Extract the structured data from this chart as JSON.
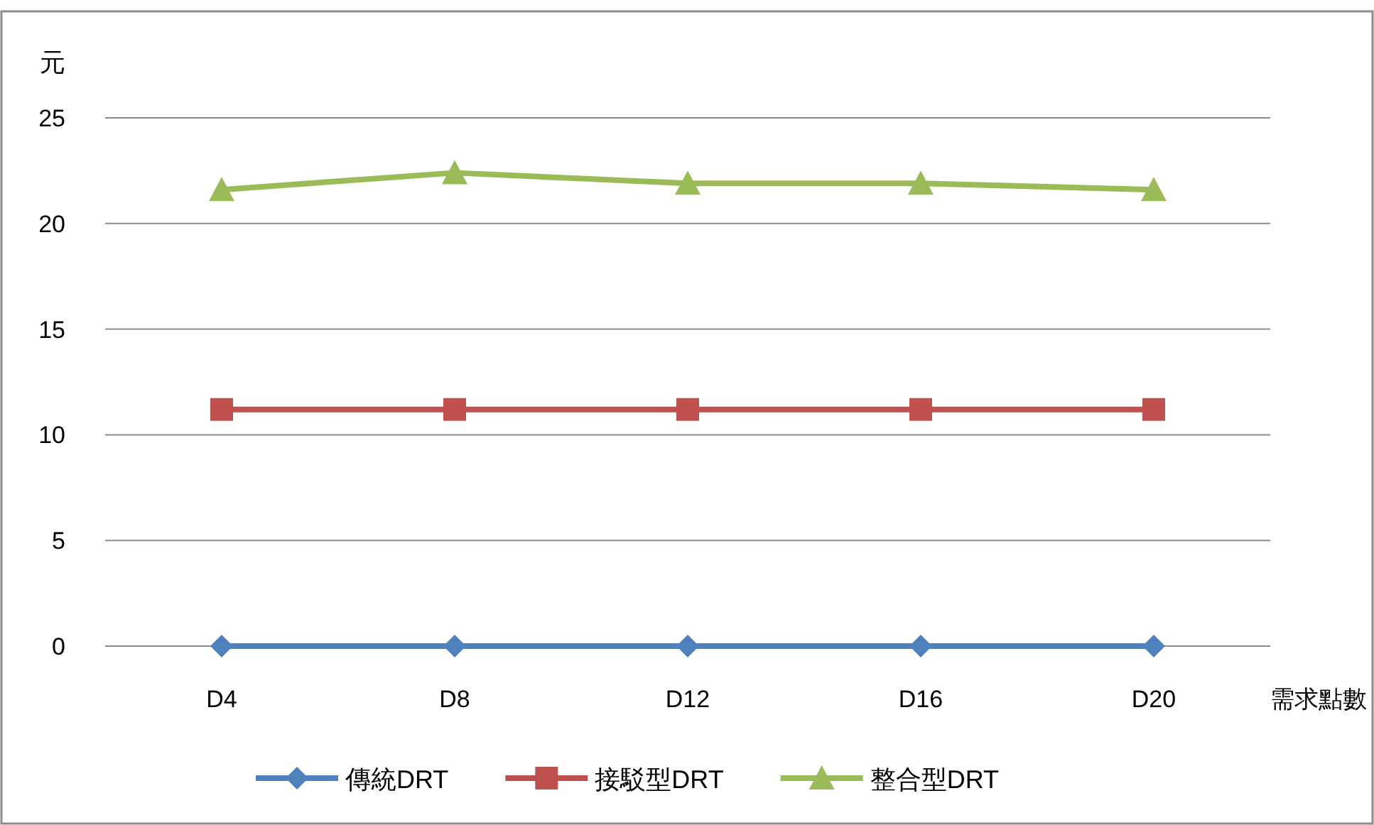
{
  "chart_data": {
    "type": "line",
    "ylabel": "元",
    "xlabel": "需求點數",
    "categories": [
      "D4",
      "D8",
      "D12",
      "D16",
      "D20"
    ],
    "series": [
      {
        "name": "傳統DRT",
        "color": "#4f81bd",
        "marker": "diamond",
        "values": [
          0,
          0,
          0,
          0,
          0
        ]
      },
      {
        "name": "接駁型DRT",
        "color": "#c0504d",
        "marker": "square",
        "values": [
          11.2,
          11.2,
          11.2,
          11.2,
          11.2
        ]
      },
      {
        "name": "整合型DRT",
        "color": "#9bbb59",
        "marker": "triangle",
        "values": [
          21.6,
          22.4,
          21.9,
          21.9,
          21.6
        ]
      }
    ],
    "ylim": [
      0,
      25
    ],
    "yticks": [
      0,
      5,
      10,
      15,
      20,
      25
    ],
    "grid": "y",
    "legend": "bottom",
    "line_style": "solid"
  }
}
